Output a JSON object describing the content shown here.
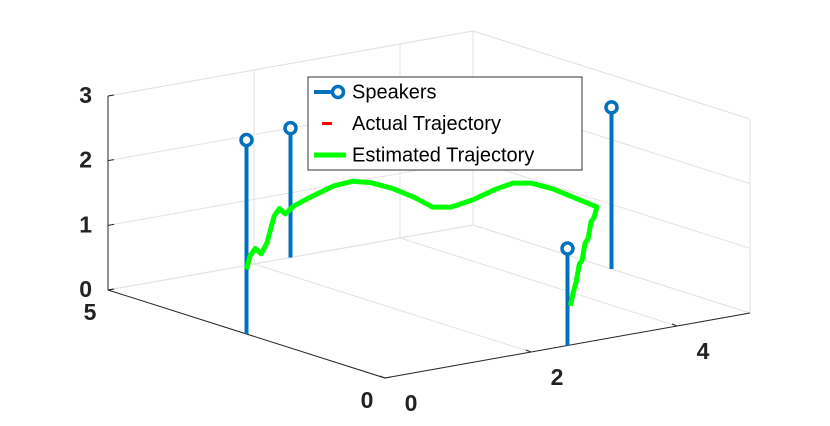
{
  "chart_data": {
    "type": "line3d",
    "xlim": [
      0,
      5
    ],
    "ylim": [
      0,
      5
    ],
    "zlim": [
      0,
      3
    ],
    "xticks": [
      0,
      2,
      4
    ],
    "yticks": [
      0,
      5
    ],
    "zticks": [
      0,
      1,
      2,
      3
    ],
    "grid": true,
    "legend": "north",
    "series": [
      {
        "name": "Speakers",
        "kind": "stem",
        "color": "#0072bd",
        "x": [
          0,
          2.5,
          2.5,
          5
        ],
        "y": [
          2.5,
          5,
          0,
          2.5
        ],
        "z": [
          3,
          2,
          1.5,
          2.5
        ]
      },
      {
        "name": "Actual Trajectory",
        "kind": "line",
        "color": "#ff0000",
        "x": [
          0,
          0.05,
          0.12,
          0.2,
          0.28,
          0.38,
          0.45,
          0.53,
          0.65,
          0.9,
          1.2,
          1.45,
          1.7,
          2.0,
          2.3,
          2.55,
          2.8,
          3.1,
          3.4,
          3.65,
          3.9,
          4.2,
          4.5,
          4.8,
          4.57,
          4.34,
          4.11,
          3.88,
          3.65,
          3.42,
          3.19,
          2.96,
          2.73
        ],
        "y": [
          2.5,
          2.5,
          2.5,
          2.5,
          2.5,
          2.5,
          2.5,
          2.5,
          2.5,
          2.5,
          2.5,
          2.5,
          2.5,
          2.5,
          2.5,
          2.5,
          2.5,
          2.5,
          2.5,
          2.5,
          2.5,
          2.5,
          2.5,
          2.5,
          2.25,
          2.0,
          1.75,
          1.5,
          1.25,
          1.0,
          0.75,
          0.5,
          0.25
        ],
        "z": [
          1.0,
          1.2,
          1.3,
          1.2,
          1.35,
          1.75,
          1.85,
          1.75,
          1.85,
          1.95,
          2.05,
          2.07,
          2.0,
          1.85,
          1.65,
          1.45,
          1.4,
          1.45,
          1.55,
          1.6,
          1.55,
          1.4,
          1.2,
          1.0,
          0.95,
          1.0,
          0.85,
          0.9,
          0.75,
          0.8,
          0.65,
          0.6,
          0.5
        ]
      },
      {
        "name": "Estimated Trajectory",
        "kind": "line",
        "color": "#00ff00",
        "x": [
          0,
          0.05,
          0.12,
          0.2,
          0.28,
          0.38,
          0.45,
          0.53,
          0.65,
          0.9,
          1.2,
          1.45,
          1.7,
          2.0,
          2.3,
          2.55,
          2.8,
          3.1,
          3.4,
          3.65,
          3.9,
          4.2,
          4.5,
          4.8,
          4.57,
          4.34,
          4.11,
          3.88,
          3.65,
          3.42,
          3.19,
          2.96,
          2.73
        ],
        "y": [
          2.5,
          2.5,
          2.5,
          2.5,
          2.5,
          2.5,
          2.5,
          2.5,
          2.5,
          2.5,
          2.5,
          2.5,
          2.5,
          2.5,
          2.5,
          2.5,
          2.5,
          2.5,
          2.5,
          2.5,
          2.5,
          2.5,
          2.5,
          2.5,
          2.25,
          2.0,
          1.75,
          1.5,
          1.25,
          1.0,
          0.75,
          0.5,
          0.25
        ],
        "z": [
          1.0,
          1.2,
          1.3,
          1.2,
          1.35,
          1.75,
          1.85,
          1.75,
          1.85,
          1.95,
          2.05,
          2.07,
          2.0,
          1.85,
          1.65,
          1.45,
          1.4,
          1.45,
          1.55,
          1.6,
          1.55,
          1.4,
          1.2,
          1.0,
          0.95,
          1.0,
          0.85,
          0.9,
          0.75,
          0.8,
          0.65,
          0.6,
          0.5
        ]
      }
    ]
  }
}
